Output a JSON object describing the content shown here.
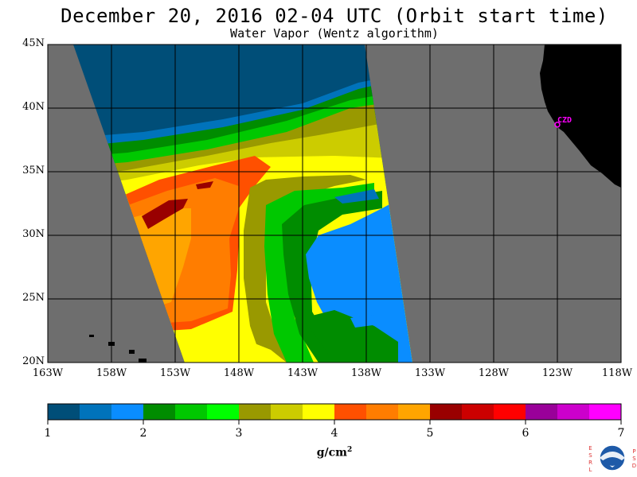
{
  "title": "December 20, 2016  02-04 UTC  (Orbit start time)",
  "subtitle": "Water Vapor (Wentz algorithm)",
  "map": {
    "lon_min": -163,
    "lon_max": -118,
    "lat_min": 20,
    "lat_max": 45,
    "latitude_labels": [
      "45N",
      "40N",
      "35N",
      "30N",
      "25N",
      "20N"
    ],
    "longitude_labels": [
      "163W",
      "158W",
      "153W",
      "148W",
      "143W",
      "138W",
      "133W",
      "128W",
      "123W",
      "118W"
    ],
    "grid": true,
    "no_data_color": "#6e6e6e",
    "land_color": "#000000",
    "city_marker": {
      "label": "CZD",
      "lon": -123.0,
      "lat": 38.7,
      "color": "#ff00ff"
    }
  },
  "colorbar": {
    "min": 1,
    "max": 7,
    "tick_labels": [
      "1",
      "2",
      "3",
      "4",
      "5",
      "6",
      "7"
    ],
    "colors": [
      "#004e78",
      "#0073bb",
      "#0a8dff",
      "#008c00",
      "#00c800",
      "#00ff00",
      "#999900",
      "#cccc00",
      "#ffff00",
      "#ff5000",
      "#ff7d00",
      "#ffa500",
      "#990000",
      "#cc0000",
      "#ff0000",
      "#990099",
      "#cc00cc",
      "#ff00ff"
    ],
    "unit_label": "g/cm",
    "unit_superscript": "2"
  },
  "logo": {
    "left_letters": [
      "E",
      "S",
      "R",
      "L"
    ],
    "right_letters": [
      "P",
      "S",
      "D"
    ],
    "center_text": "NOAA"
  }
}
